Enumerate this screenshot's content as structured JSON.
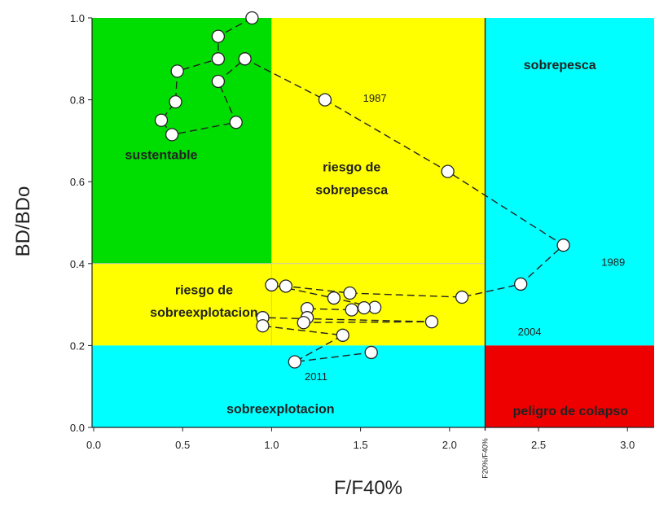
{
  "chart_data": {
    "type": "scatter",
    "xlabel": "F/F40%",
    "ylabel": "BD/BDo",
    "xlim": [
      0,
      3.2
    ],
    "ylim": [
      0,
      1.0
    ],
    "xticks": [
      "0.0",
      "0.5",
      "1.0",
      "1.5",
      "2.0",
      "2.5",
      "3.0"
    ],
    "yticks": [
      "0.0",
      "0.2",
      "0.4",
      "0.6",
      "0.8",
      "1.0"
    ],
    "grid": false,
    "regions": [
      {
        "name": "sustentable",
        "color": "#00dd00",
        "x": [
          0,
          1.0
        ],
        "y": [
          0.4,
          1.0
        ]
      },
      {
        "name": "riesgo de sobrepesca",
        "color": "#ffff00",
        "x": [
          1.0,
          2.2
        ],
        "y": [
          0.4,
          1.0
        ]
      },
      {
        "name": "riesgo de sobreexplotacion",
        "color": "#ffff00",
        "x": [
          0,
          2.2
        ],
        "y": [
          0.2,
          0.4
        ]
      },
      {
        "name": "sobrepesca",
        "color": "#00ffff",
        "x": [
          2.2,
          3.2
        ],
        "y": [
          0.2,
          1.0
        ]
      },
      {
        "name": "sobreexplotacion",
        "color": "#00ffff",
        "x": [
          0,
          2.2
        ],
        "y": [
          0,
          0.2
        ]
      },
      {
        "name": "peligro de colapso",
        "color": "#ee0000",
        "x": [
          2.2,
          3.2
        ],
        "y": [
          0,
          0.2
        ]
      }
    ],
    "region_labels": [
      {
        "text": "sustentable",
        "x": 0.38,
        "y": 0.655
      },
      {
        "text": "riesgo de",
        "x": 1.45,
        "y": 0.625
      },
      {
        "text": "sobrepesca",
        "x": 1.45,
        "y": 0.57
      },
      {
        "text": "riesgo de",
        "x": 0.62,
        "y": 0.325
      },
      {
        "text": "sobreexplotacion",
        "x": 0.62,
        "y": 0.27
      },
      {
        "text": "sobrepesca",
        "x": 2.62,
        "y": 0.875
      },
      {
        "text": "sobreexplotacion",
        "x": 1.05,
        "y": 0.035
      },
      {
        "text": "peligro de colapso",
        "x": 2.68,
        "y": 0.03
      }
    ],
    "vertical_line": {
      "x": 2.2,
      "label": "F20%/F40%"
    },
    "series": [
      {
        "values": [
          [
            0.89,
            1.0
          ],
          [
            0.7,
            0.955
          ],
          [
            0.7,
            0.9
          ],
          [
            0.47,
            0.87
          ],
          [
            0.46,
            0.795
          ],
          [
            0.38,
            0.75
          ],
          [
            0.44,
            0.715
          ],
          [
            0.8,
            0.745
          ],
          [
            0.7,
            0.845
          ],
          [
            0.85,
            0.9
          ],
          [
            1.3,
            0.8
          ],
          [
            1.99,
            0.625
          ],
          [
            2.64,
            0.445
          ],
          [
            2.4,
            0.35
          ],
          [
            2.07,
            0.318
          ],
          [
            1.44,
            0.328
          ],
          [
            1.08,
            0.345
          ],
          [
            1.0,
            0.348
          ],
          [
            1.35,
            0.316
          ],
          [
            1.58,
            0.293
          ],
          [
            1.52,
            0.292
          ],
          [
            1.45,
            0.287
          ],
          [
            1.2,
            0.29
          ],
          [
            1.2,
            0.268
          ],
          [
            1.18,
            0.256
          ],
          [
            1.9,
            0.258
          ],
          [
            0.95,
            0.268
          ],
          [
            0.95,
            0.248
          ],
          [
            1.4,
            0.225
          ],
          [
            1.13,
            0.16
          ],
          [
            1.56,
            0.183
          ]
        ]
      }
    ],
    "annotations": [
      {
        "text": "1987",
        "x": 1.58,
        "y": 0.795
      },
      {
        "text": "1989",
        "x": 2.92,
        "y": 0.395
      },
      {
        "text": "2004",
        "x": 2.45,
        "y": 0.225
      },
      {
        "text": "2011",
        "x": 1.25,
        "y": 0.115
      }
    ]
  }
}
